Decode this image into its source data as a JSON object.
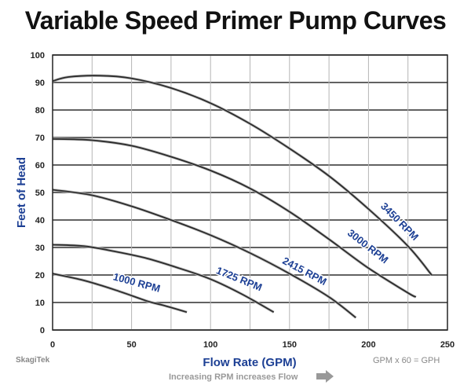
{
  "title": "Variable Speed Primer Pump Curves",
  "brand": "SkagiTek",
  "note": "GPM x 60 = GPH",
  "footer": "Increasing RPM increases Flow",
  "colors": {
    "axis_title": "#1c3f94",
    "curve": "#2b2b2b",
    "grid": "#333333",
    "label": "#1c3f94"
  },
  "chart_data": {
    "type": "line",
    "title": "Variable Speed Primer Pump Curves",
    "xlabel": "Flow Rate (GPM)",
    "ylabel": "Feet of Head",
    "xlim": [
      0,
      250
    ],
    "ylim": [
      0,
      100
    ],
    "x_ticks": [
      0,
      50,
      100,
      150,
      200,
      250
    ],
    "y_ticks": [
      0,
      10,
      20,
      30,
      40,
      50,
      60,
      70,
      80,
      90,
      100
    ],
    "grid": true,
    "series": [
      {
        "name": "1000 RPM",
        "x": [
          0,
          20,
          40,
          60,
          70,
          85
        ],
        "y": [
          20.5,
          18,
          14.5,
          10.5,
          9,
          6.5
        ]
      },
      {
        "name": "1725 RPM",
        "x": [
          0,
          20,
          40,
          60,
          80,
          100,
          120,
          140
        ],
        "y": [
          31,
          30.5,
          28.5,
          26,
          22.5,
          18.5,
          13,
          6.5
        ]
      },
      {
        "name": "2415 RPM",
        "x": [
          0,
          25,
          50,
          75,
          100,
          125,
          150,
          175,
          192
        ],
        "y": [
          51,
          49,
          45,
          40,
          34.5,
          28,
          20.5,
          12,
          4.5
        ]
      },
      {
        "name": "3000 RPM",
        "x": [
          0,
          25,
          50,
          75,
          100,
          125,
          150,
          175,
          200,
          225,
          230
        ],
        "y": [
          69.5,
          69,
          67,
          63,
          58,
          51.5,
          43,
          33,
          22.5,
          13.5,
          12
        ]
      },
      {
        "name": "3450 RPM",
        "x": [
          0,
          10,
          30,
          50,
          75,
          100,
          125,
          150,
          175,
          200,
          225,
          240
        ],
        "y": [
          90.5,
          92,
          92.5,
          91.5,
          88,
          82.5,
          75,
          66,
          56,
          44,
          30.5,
          20
        ]
      }
    ]
  }
}
